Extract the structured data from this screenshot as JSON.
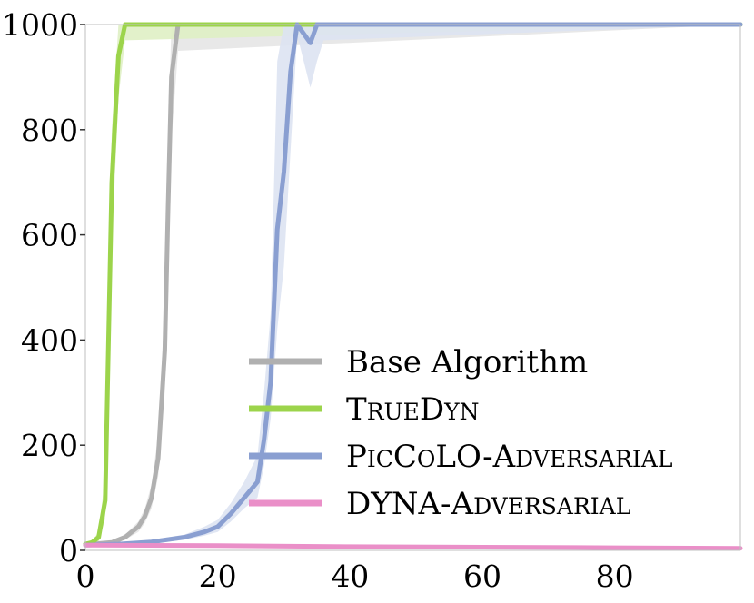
{
  "chart_data": {
    "type": "line",
    "title": "",
    "xlabel": "",
    "ylabel": "",
    "xlim": [
      0,
      99
    ],
    "ylim": [
      0,
      1000
    ],
    "x_ticks": [
      0,
      20,
      40,
      60,
      80
    ],
    "y_ticks": [
      0,
      200,
      400,
      600,
      800,
      1000
    ],
    "grid": false,
    "legend_placement": "lower-right",
    "series": [
      {
        "name": "Base Algorithm",
        "color": "#b0b0b0",
        "band_color": "#e6e6e6",
        "x": [
          0,
          2,
          4,
          6,
          8,
          9,
          10,
          11,
          12,
          12.5,
          13,
          14,
          99
        ],
        "values": [
          12,
          13,
          15,
          25,
          45,
          65,
          100,
          175,
          380,
          650,
          900,
          1000,
          1000
        ],
        "band_upper": [
          14,
          15,
          18,
          30,
          55,
          80,
          125,
          220,
          470,
          780,
          1000,
          1000,
          1000
        ],
        "band_lower": [
          10,
          11,
          12,
          20,
          35,
          52,
          80,
          140,
          300,
          520,
          780,
          950,
          1000
        ]
      },
      {
        "name": "TrueDyn",
        "name_parts": [
          {
            "text": "T",
            "small_caps": false
          },
          {
            "text": "RUE",
            "small_caps": true
          },
          {
            "text": "D",
            "small_caps": false
          },
          {
            "text": "YN",
            "small_caps": true
          }
        ],
        "color": "#9cd44b",
        "band_color": "#dff0c4",
        "x": [
          0,
          1,
          2,
          3,
          4,
          5,
          6,
          99
        ],
        "values": [
          12,
          15,
          25,
          95,
          700,
          940,
          1000,
          1000
        ],
        "band_upper": [
          14,
          18,
          35,
          140,
          800,
          1000,
          1000,
          1000
        ],
        "band_lower": [
          10,
          12,
          15,
          60,
          580,
          860,
          970,
          1000
        ]
      },
      {
        "name": "PicCoLO-Adversarial",
        "name_parts": [
          {
            "text": "P",
            "small_caps": false
          },
          {
            "text": "IC",
            "small_caps": true
          },
          {
            "text": "C",
            "small_caps": false
          },
          {
            "text": "O",
            "small_caps": true
          },
          {
            "text": "LO-A",
            "small_caps": false
          },
          {
            "text": "DVERSARIAL",
            "small_caps": true
          }
        ],
        "color": "#8a9fd1",
        "band_color": "#dde3f2",
        "x": [
          0,
          5,
          10,
          15,
          18,
          20,
          22,
          24,
          26,
          27,
          28,
          29,
          30,
          31,
          32,
          34,
          35,
          36,
          99
        ],
        "values": [
          10,
          12,
          16,
          25,
          35,
          45,
          70,
          100,
          130,
          210,
          320,
          610,
          720,
          910,
          1000,
          965,
          1000,
          1000,
          1000
        ],
        "band_upper": [
          12,
          14,
          20,
          30,
          45,
          58,
          90,
          130,
          180,
          300,
          450,
          930,
          1000,
          1000,
          1000,
          1000,
          1000,
          1000,
          1000
        ],
        "band_lower": [
          8,
          10,
          13,
          20,
          28,
          35,
          55,
          80,
          100,
          160,
          250,
          420,
          540,
          760,
          980,
          880,
          930,
          970,
          1000
        ]
      },
      {
        "name": "Dyna-Adversarial",
        "name_parts": [
          {
            "text": "DYNA-A",
            "small_caps": false
          },
          {
            "text": "DVERSARIAL",
            "small_caps": true
          }
        ],
        "color": "#ea8fc8",
        "band_color": "#f6d6ea",
        "x": [
          0,
          20,
          40,
          60,
          80,
          99
        ],
        "values": [
          10,
          9,
          7,
          6,
          5,
          4
        ],
        "band_upper": [
          12,
          11,
          9,
          8,
          7,
          6
        ],
        "band_lower": [
          8,
          7,
          5,
          4,
          3,
          2
        ]
      }
    ]
  }
}
